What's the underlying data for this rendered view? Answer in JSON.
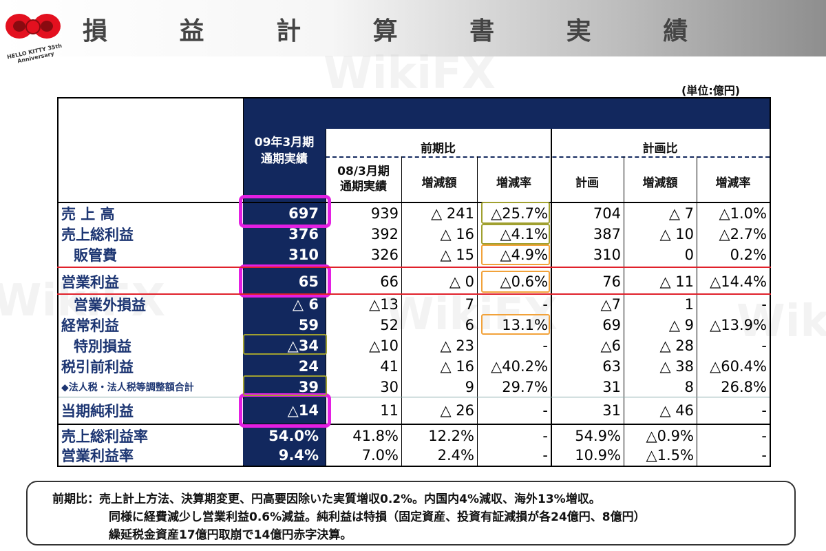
{
  "title": "損 益 計 算 書 実 績",
  "logo_text": "HELLO KITTY 35th Anniversary",
  "unit": "(単位:億円)",
  "headers": {
    "current": [
      "09年3月期",
      "通期実績"
    ],
    "yoy_group": "前期比",
    "plan_group": "計画比",
    "prev": [
      "08/3月期",
      "通期実績"
    ],
    "yoy_change": "増減額",
    "yoy_rate": "増減率",
    "plan": "計画",
    "plan_change": "増減額",
    "plan_rate": "増減率"
  },
  "rows": [
    {
      "label": "売 上 高",
      "cur": "697",
      "prev": "939",
      "chg": "△ 241",
      "rate": "△25.7%",
      "plan": "704",
      "pchg": "△ 7",
      "prate": "△1.0%"
    },
    {
      "label": "売上総利益",
      "cur": "376",
      "prev": "392",
      "chg": "△ 16",
      "rate": "△4.1%",
      "plan": "387",
      "pchg": "△ 10",
      "prate": "△2.7%"
    },
    {
      "label": "販管費",
      "cur": "310",
      "prev": "326",
      "chg": "△ 15",
      "rate": "△4.9%",
      "plan": "310",
      "pchg": "0",
      "prate": "0.2%"
    },
    {
      "label": "営業利益",
      "cur": "65",
      "prev": "66",
      "chg": "△ 0",
      "rate": "△0.6%",
      "plan": "76",
      "pchg": "△ 11",
      "prate": "△14.4%"
    },
    {
      "label": "営業外損益",
      "cur": "△ 6",
      "prev": "△13",
      "chg": "7",
      "rate": "-",
      "plan": "△7",
      "pchg": "1",
      "prate": "-"
    },
    {
      "label": "経常利益",
      "cur": "59",
      "prev": "52",
      "chg": "6",
      "rate": "13.1%",
      "plan": "69",
      "pchg": "△ 9",
      "prate": "△13.9%"
    },
    {
      "label": "特別損益",
      "cur": "△34",
      "prev": "△10",
      "chg": "△ 23",
      "rate": "-",
      "plan": "△6",
      "pchg": "△ 28",
      "prate": "-"
    },
    {
      "label": "税引前利益",
      "cur": "24",
      "prev": "41",
      "chg": "△ 16",
      "rate": "△40.2%",
      "plan": "63",
      "pchg": "△ 38",
      "prate": "△60.4%"
    },
    {
      "label": "◆法人税・法人税等調整額合計",
      "cur": "39",
      "prev": "30",
      "chg": "9",
      "rate": "29.7%",
      "plan": "31",
      "pchg": "8",
      "prate": "26.8%"
    },
    {
      "label": "当期純利益",
      "cur": "△14",
      "prev": "11",
      "chg": "△ 26",
      "rate": "-",
      "plan": "31",
      "pchg": "△ 46",
      "prate": "-"
    },
    {
      "label": "売上総利益率",
      "cur": "54.0%",
      "prev": "41.8%",
      "chg": "12.2%",
      "rate": "-",
      "plan": "54.9%",
      "pchg": "△0.9%",
      "prate": "-"
    },
    {
      "label": "営業利益率",
      "cur": "9.4%",
      "prev": "7.0%",
      "chg": "2.4%",
      "rate": "-",
      "plan": "10.9%",
      "pchg": "△1.5%",
      "prate": "-"
    }
  ],
  "note": [
    "前期比：売上計上方法、決算期変更、円高要因除いた実質増収0.2%。内国内4%減収、海外13%増収。",
    "同様に経費減少し営業利益0.6%減益。純利益は特損（固定資産、投資有証減損が各24億円、8億円）",
    "繰延税金資産17億円取崩で14億円赤字決算。"
  ],
  "watermark": "WikiFX",
  "colors": {
    "navy": "#12285e",
    "label_blue": "#1c3572",
    "highlight_pink": "#e31fe2",
    "highlight_orange": "#f2a23a",
    "highlight_olive": "#a0a030",
    "divider_red": "#e0212b"
  }
}
